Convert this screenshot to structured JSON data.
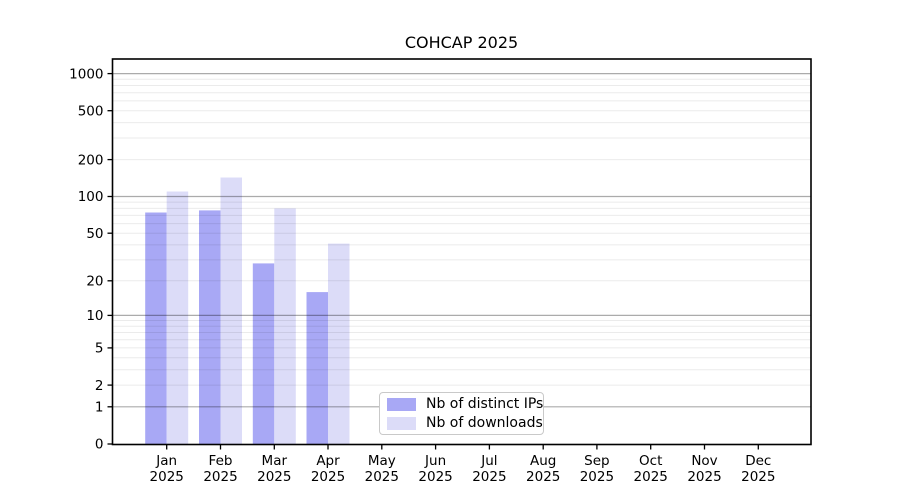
{
  "chart_data": {
    "type": "bar",
    "title": "COHCAP 2025",
    "categories": [
      "Jan 2025",
      "Feb 2025",
      "Mar 2025",
      "Apr 2025",
      "May 2025",
      "Jun 2025",
      "Jul 2025",
      "Aug 2025",
      "Sep 2025",
      "Oct 2025",
      "Nov 2025",
      "Dec 2025"
    ],
    "month_labels": [
      "Jan",
      "Feb",
      "Mar",
      "Apr",
      "May",
      "Jun",
      "Jul",
      "Aug",
      "Sep",
      "Oct",
      "Nov",
      "Dec"
    ],
    "year": "2025",
    "series": [
      {
        "name": "Nb of distinct IPs",
        "color": "#a8a8f5",
        "values": [
          74,
          77,
          28,
          16,
          0,
          0,
          0,
          0,
          0,
          0,
          0,
          0
        ]
      },
      {
        "name": "Nb of downloads",
        "color": "#dcdcf8",
        "values": [
          110,
          143,
          80,
          41,
          0,
          0,
          0,
          0,
          0,
          0,
          0,
          0
        ]
      }
    ],
    "xlabel": "",
    "ylabel": "",
    "yscale": "log1p",
    "ylim": [
      0,
      1320
    ],
    "y_ticks": [
      0,
      1,
      2,
      5,
      10,
      20,
      50,
      100,
      200,
      500,
      1000
    ],
    "grid": {
      "show": true,
      "major_ticks": [
        1,
        10,
        100,
        1000
      ],
      "major_color": "rgba(0,0,0,0.33)",
      "minor_color": "rgba(0,0,0,0.08)"
    },
    "legend": {
      "position": "inside-bottom-center"
    },
    "axis_color": "#000000",
    "background": "#ffffff"
  }
}
